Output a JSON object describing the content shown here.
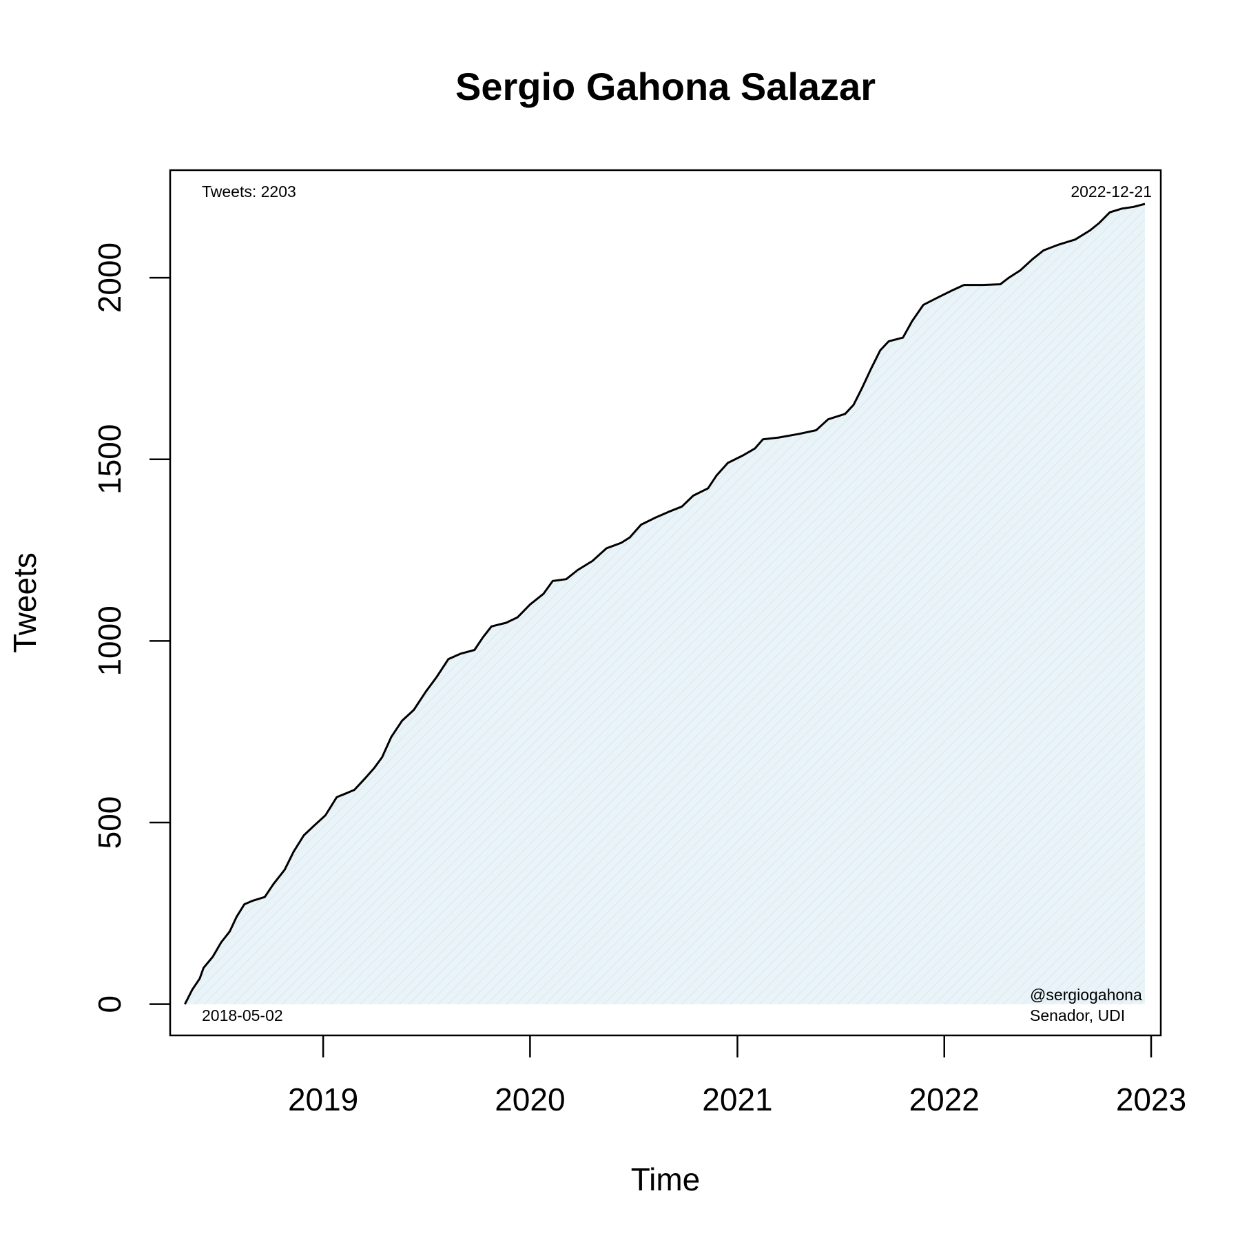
{
  "chart_data": {
    "type": "area",
    "title": "Sergio Gahona Salazar",
    "xlabel": "Time",
    "ylabel": "Tweets",
    "x_range": [
      "2018-04-06",
      "2023-01-18"
    ],
    "ylim": [
      -86,
      2296
    ],
    "x_ticks": [
      "2019",
      "2020",
      "2021",
      "2022",
      "2023"
    ],
    "y_ticks": [
      "0",
      "500",
      "1000",
      "1500",
      "2000"
    ],
    "grid": false,
    "annotations": {
      "total": "Tweets: 2203",
      "start_date": "2018-05-02",
      "end_date": "2022-12-21",
      "handle": "@sergiogahona",
      "role": "Senador, UDI"
    },
    "series": [
      {
        "points": [
          [
            "2018-05-02",
            0
          ],
          [
            "2018-05-15",
            40
          ],
          [
            "2018-05-28",
            70
          ],
          [
            "2018-06-04",
            100
          ],
          [
            "2018-06-20",
            130
          ],
          [
            "2018-07-05",
            170
          ],
          [
            "2018-07-20",
            200
          ],
          [
            "2018-08-01",
            240
          ],
          [
            "2018-08-15",
            275
          ],
          [
            "2018-08-30",
            285
          ],
          [
            "2018-09-20",
            295
          ],
          [
            "2018-10-05",
            330
          ],
          [
            "2018-10-25",
            370
          ],
          [
            "2018-11-10",
            420
          ],
          [
            "2018-11-28",
            465
          ],
          [
            "2018-12-15",
            490
          ],
          [
            "2019-01-05",
            520
          ],
          [
            "2019-01-25",
            570
          ],
          [
            "2019-02-10",
            580
          ],
          [
            "2019-02-25",
            590
          ],
          [
            "2019-03-15",
            620
          ],
          [
            "2019-04-01",
            650
          ],
          [
            "2019-04-15",
            680
          ],
          [
            "2019-05-01",
            735
          ],
          [
            "2019-05-20",
            780
          ],
          [
            "2019-06-10",
            810
          ],
          [
            "2019-07-01",
            860
          ],
          [
            "2019-07-20",
            900
          ],
          [
            "2019-08-10",
            950
          ],
          [
            "2019-09-01",
            965
          ],
          [
            "2019-09-25",
            975
          ],
          [
            "2019-10-10",
            1010
          ],
          [
            "2019-10-25",
            1040
          ],
          [
            "2019-11-20",
            1050
          ],
          [
            "2019-12-10",
            1065
          ],
          [
            "2020-01-01",
            1100
          ],
          [
            "2020-01-25",
            1130
          ],
          [
            "2020-02-10",
            1165
          ],
          [
            "2020-03-05",
            1170
          ],
          [
            "2020-03-25",
            1195
          ],
          [
            "2020-04-20",
            1220
          ],
          [
            "2020-05-15",
            1255
          ],
          [
            "2020-06-10",
            1270
          ],
          [
            "2020-06-25",
            1285
          ],
          [
            "2020-07-15",
            1320
          ],
          [
            "2020-08-10",
            1340
          ],
          [
            "2020-09-01",
            1355
          ],
          [
            "2020-09-25",
            1370
          ],
          [
            "2020-10-15",
            1400
          ],
          [
            "2020-11-10",
            1420
          ],
          [
            "2020-11-25",
            1455
          ],
          [
            "2020-12-15",
            1490
          ],
          [
            "2021-01-10",
            1510
          ],
          [
            "2021-02-01",
            1530
          ],
          [
            "2021-02-15",
            1555
          ],
          [
            "2021-03-15",
            1560
          ],
          [
            "2021-04-20",
            1570
          ],
          [
            "2021-05-20",
            1580
          ],
          [
            "2021-06-10",
            1610
          ],
          [
            "2021-07-10",
            1625
          ],
          [
            "2021-07-25",
            1650
          ],
          [
            "2021-08-10",
            1700
          ],
          [
            "2021-08-25",
            1750
          ],
          [
            "2021-09-10",
            1800
          ],
          [
            "2021-09-25",
            1825
          ],
          [
            "2021-10-20",
            1835
          ],
          [
            "2021-11-05",
            1880
          ],
          [
            "2021-11-25",
            1925
          ],
          [
            "2021-12-20",
            1945
          ],
          [
            "2022-01-15",
            1965
          ],
          [
            "2022-02-05",
            1980
          ],
          [
            "2022-03-10",
            1980
          ],
          [
            "2022-04-10",
            1982
          ],
          [
            "2022-04-25",
            2000
          ],
          [
            "2022-05-15",
            2020
          ],
          [
            "2022-06-05",
            2050
          ],
          [
            "2022-06-25",
            2075
          ],
          [
            "2022-07-20",
            2090
          ],
          [
            "2022-08-20",
            2105
          ],
          [
            "2022-09-15",
            2130
          ],
          [
            "2022-10-01",
            2150
          ],
          [
            "2022-10-20",
            2180
          ],
          [
            "2022-11-10",
            2190
          ],
          [
            "2022-12-01",
            2195
          ],
          [
            "2022-12-21",
            2203
          ]
        ]
      }
    ],
    "colors": {
      "line": "#000000",
      "fill": "#eaf4f8",
      "hatch": "#d6e9ef",
      "axis": "#000000"
    }
  }
}
